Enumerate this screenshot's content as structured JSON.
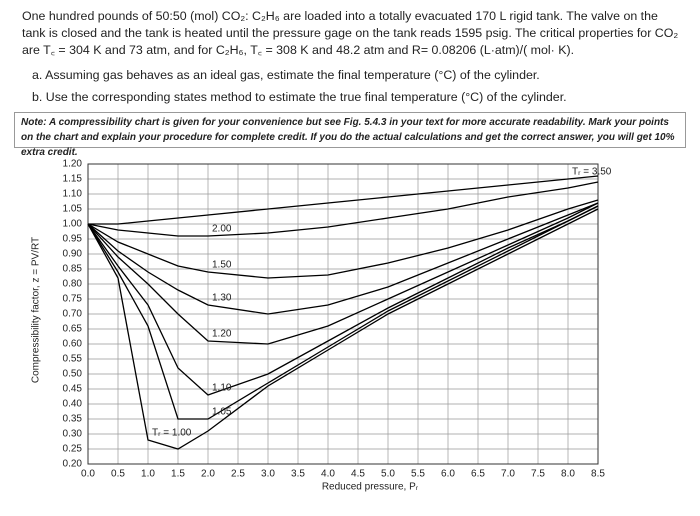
{
  "problem": {
    "text": "One hundred pounds of 50:50 (mol) CO₂: C₂H₆ are loaded into a totally evacuated 170 L rigid tank. The valve on the tank is closed and the tank is heated until the pressure gage on the tank reads 1595 psig. The critical properties for CO₂ are T꜀ = 304 K and 73 atm, and for C₂H₆, T꜀ = 308 K and 48.2 atm and R= 0.08206 (L·atm)/( mol· K).",
    "questions": [
      "a. Assuming gas behaves as an ideal gas, estimate the final temperature (°C) of the cylinder.",
      "b. Use the corresponding states method to estimate the true final temperature (°C) of the cylinder."
    ],
    "note": "Note: A compressibility chart is given for your convenience but see Fig. 5.4.3 in your text for more accurate readability. Mark your points on the chart and explain your procedure for complete credit. If you do the actual calculations and get the correct answer, you will get 10% extra credit."
  },
  "chart_data": {
    "type": "line",
    "x_label": "Reduced pressure, Pᵣ",
    "y_label": "Compressibility factor, z = PV/RT",
    "x": [
      0,
      0.5,
      1,
      1.5,
      2,
      3,
      4,
      5,
      6,
      7,
      8,
      8.5
    ],
    "series": [
      {
        "name": "Tᵣ = 1.00",
        "color": "#000000",
        "values": [
          1,
          0.82,
          0.28,
          0.25,
          0.31,
          0.46,
          0.58,
          0.7,
          0.8,
          0.9,
          1.0,
          1.05
        ]
      },
      {
        "name": "1.05",
        "color": "#000000",
        "values": [
          1,
          0.84,
          0.66,
          0.35,
          0.35,
          0.47,
          0.59,
          0.71,
          0.81,
          0.91,
          1.01,
          1.06
        ]
      },
      {
        "name": "1.10",
        "color": "#000000",
        "values": [
          1,
          0.86,
          0.73,
          0.52,
          0.43,
          0.5,
          0.61,
          0.72,
          0.82,
          0.92,
          1.01,
          1.06
        ]
      },
      {
        "name": "1.20",
        "color": "#000000",
        "values": [
          1,
          0.89,
          0.8,
          0.7,
          0.61,
          0.6,
          0.66,
          0.75,
          0.84,
          0.93,
          1.02,
          1.07
        ]
      },
      {
        "name": "1.30",
        "color": "#000000",
        "values": [
          1,
          0.91,
          0.84,
          0.78,
          0.73,
          0.7,
          0.73,
          0.79,
          0.87,
          0.95,
          1.03,
          1.07
        ]
      },
      {
        "name": "1.50",
        "color": "#000000",
        "values": [
          1,
          0.94,
          0.9,
          0.86,
          0.84,
          0.82,
          0.83,
          0.87,
          0.92,
          0.98,
          1.05,
          1.08
        ]
      },
      {
        "name": "2.00",
        "color": "#000000",
        "values": [
          1,
          0.98,
          0.97,
          0.96,
          0.96,
          0.97,
          0.99,
          1.02,
          1.05,
          1.09,
          1.12,
          1.14
        ]
      },
      {
        "name": "Tᵣ = 3.50",
        "color": "#000000",
        "values": [
          1,
          1.0,
          1.01,
          1.02,
          1.03,
          1.05,
          1.07,
          1.09,
          1.11,
          1.13,
          1.15,
          1.16
        ]
      }
    ],
    "xlim": [
      0,
      8.5
    ],
    "ylim": [
      0.2,
      1.2
    ],
    "xticks": [
      {
        "value": 0,
        "label": "0.0"
      },
      0.5,
      {
        "value": 1,
        "label": "1.0"
      },
      1.5,
      {
        "value": 2,
        "label": "2.0"
      },
      2.5,
      {
        "value": 3,
        "label": "3.0"
      },
      3.5,
      {
        "value": 4,
        "label": "4.0"
      },
      4.5,
      {
        "value": 5,
        "label": "5.0"
      },
      5.5,
      {
        "value": 6,
        "label": "6.0"
      },
      6.5,
      {
        "value": 7,
        "label": "7.0"
      },
      7.5,
      {
        "value": 8,
        "label": "8.0"
      },
      8.5
    ],
    "yticks": [
      {
        "value": 0.2,
        "label": "0.20"
      },
      0.25,
      {
        "value": 0.3,
        "label": "0.30"
      },
      0.35,
      {
        "value": 0.4,
        "label": "0.40"
      },
      0.45,
      {
        "value": 0.5,
        "label": "0.50"
      },
      0.55,
      {
        "value": 0.6,
        "label": "0.60"
      },
      0.65,
      {
        "value": 0.7,
        "label": "0.70"
      },
      0.75,
      {
        "value": 0.8,
        "label": "0.80"
      },
      0.85,
      {
        "value": 0.9,
        "label": "0.90"
      },
      0.95,
      {
        "value": 1,
        "label": "1.00"
      },
      1.05,
      {
        "value": 1.1,
        "label": "1.10"
      },
      1.15,
      {
        "value": 1.2,
        "label": "1.20"
      }
    ],
    "grid": true
  }
}
